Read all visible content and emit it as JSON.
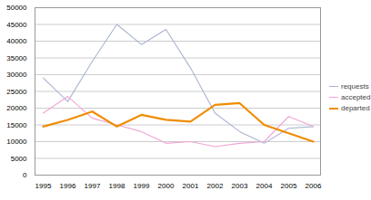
{
  "chart_data": {
    "type": "line",
    "categories": [
      "1995",
      "1996",
      "1997",
      "1998",
      "1999",
      "2000",
      "2001",
      "2002",
      "2003",
      "2004",
      "2005",
      "2006"
    ],
    "series": [
      {
        "name": "requests",
        "color": "#aab4d2",
        "values": [
          29000,
          22000,
          34000,
          45000,
          39000,
          43500,
          32000,
          18500,
          13000,
          9500,
          14000,
          14500
        ]
      },
      {
        "name": "accepted",
        "color": "#f0a6d6",
        "values": [
          18500,
          23500,
          17000,
          15000,
          13000,
          9500,
          10000,
          8500,
          9500,
          10000,
          17500,
          14500
        ]
      },
      {
        "name": "departed",
        "color": "#f08c00",
        "values": [
          14500,
          16500,
          19000,
          14500,
          18000,
          16500,
          16000,
          21000,
          21500,
          15000,
          12500,
          10000
        ]
      }
    ],
    "ylim": [
      0,
      50000
    ],
    "yticks": [
      0,
      5000,
      10000,
      15000,
      20000,
      25000,
      30000,
      35000,
      40000,
      45000,
      50000
    ],
    "grid": true,
    "legend": "right"
  }
}
